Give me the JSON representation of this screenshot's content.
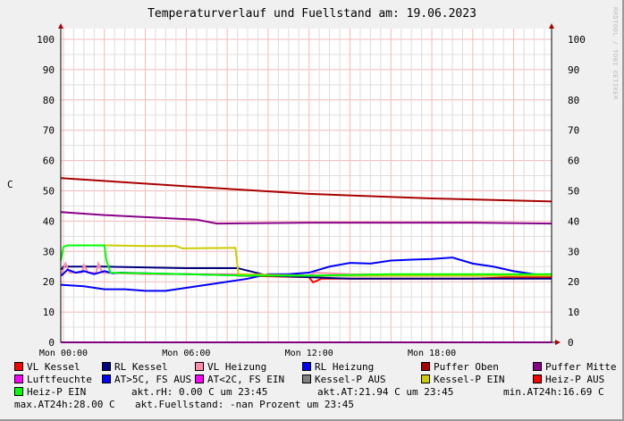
{
  "chart_data": {
    "type": "line",
    "title": "Temperaturverlauf und Fuellstand am: 19.06.2023",
    "ylabel": "C",
    "watermark": "RRDTOOL / TOBI OETIKER",
    "ylim": [
      0,
      100
    ],
    "yticks": [
      0,
      10,
      20,
      30,
      40,
      50,
      60,
      70,
      80,
      90,
      100
    ],
    "xlim_hours": [
      -0.13,
      23.85
    ],
    "xticks": [
      {
        "h": 0,
        "label": "Mon 00:00"
      },
      {
        "h": 6,
        "label": "Mon 06:00"
      },
      {
        "h": 12,
        "label": "Mon 12:00"
      },
      {
        "h": 18,
        "label": "Mon 18:00"
      }
    ],
    "grid": true,
    "legend_position": "bottom",
    "series": [
      {
        "name": "VL Kessel",
        "color": "#ff0000",
        "points": [
          [
            8.5,
            22
          ],
          [
            12,
            21.5
          ],
          [
            12.2,
            19.8
          ],
          [
            12.6,
            21
          ],
          [
            16,
            21
          ],
          [
            20,
            21
          ],
          [
            22,
            21.5
          ],
          [
            23.85,
            21.5
          ]
        ]
      },
      {
        "name": "RL Kessel",
        "color": "#000080",
        "points": [
          [
            -0.1,
            24
          ],
          [
            0,
            25
          ],
          [
            2,
            25
          ],
          [
            6,
            24.5
          ],
          [
            8.5,
            24.5
          ],
          [
            10,
            22
          ],
          [
            12,
            21.5
          ],
          [
            14,
            21
          ],
          [
            20,
            21
          ],
          [
            23.85,
            21
          ]
        ]
      },
      {
        "name": "VL Heizung",
        "color": "#ff8ca8",
        "points": [
          [
            -0.1,
            22
          ],
          [
            0.1,
            26
          ],
          [
            0.3,
            23
          ],
          [
            0.9,
            23
          ],
          [
            1,
            25.5
          ],
          [
            1.2,
            23
          ],
          [
            1.6,
            23
          ],
          [
            1.7,
            26
          ],
          [
            1.9,
            23
          ],
          [
            4,
            22.5
          ],
          [
            8.5,
            22.5
          ],
          [
            12,
            22
          ],
          [
            12.3,
            23
          ],
          [
            14,
            22.5
          ],
          [
            23.85,
            22
          ]
        ]
      },
      {
        "name": "RL Heizung",
        "color": "#0000ff",
        "points": [
          [
            -0.1,
            22
          ],
          [
            0.2,
            24
          ],
          [
            0.6,
            23
          ],
          [
            1,
            23.5
          ],
          [
            1.5,
            22.5
          ],
          [
            2,
            23.5
          ],
          [
            2.4,
            22.8
          ],
          [
            2.8,
            23
          ],
          [
            4,
            22.8
          ],
          [
            8,
            22.2
          ],
          [
            9,
            22
          ],
          [
            12,
            22
          ],
          [
            23.85,
            22
          ]
        ]
      },
      {
        "name": "Puffer Oben",
        "color": "#aa0000",
        "points": [
          [
            -0.13,
            54.2
          ],
          [
            6,
            51.5
          ],
          [
            12,
            49
          ],
          [
            18,
            47.5
          ],
          [
            23.85,
            46.5
          ]
        ]
      },
      {
        "name": "Puffer Mitte",
        "color": "#880088",
        "points": [
          [
            -0.13,
            43
          ],
          [
            2,
            42
          ],
          [
            6.5,
            40.5
          ],
          [
            7.5,
            39.2
          ],
          [
            12,
            39.5
          ],
          [
            20,
            39.5
          ],
          [
            23.85,
            39.2
          ]
        ]
      },
      {
        "name": "Luftfeuchte",
        "color": "#ff00ff",
        "points": [
          [
            -0.13,
            0
          ],
          [
            23.85,
            0
          ]
        ]
      },
      {
        "name": "AT>5C, FS AUS",
        "color": "#0000ff",
        "points": [
          [
            -0.13,
            19
          ],
          [
            1,
            18.5
          ],
          [
            2,
            17.5
          ],
          [
            3,
            17.5
          ],
          [
            4,
            17
          ],
          [
            5,
            17
          ],
          [
            6,
            18
          ],
          [
            7,
            19
          ],
          [
            8,
            20
          ],
          [
            9,
            21
          ],
          [
            10,
            22.5
          ],
          [
            11,
            22.5
          ],
          [
            12,
            23
          ],
          [
            13,
            25
          ],
          [
            14,
            26.2
          ],
          [
            15,
            26
          ],
          [
            16,
            27
          ],
          [
            17,
            27.3
          ],
          [
            18,
            27.5
          ],
          [
            19,
            28
          ],
          [
            20,
            26
          ],
          [
            21,
            25
          ],
          [
            22,
            23.5
          ],
          [
            23,
            22.5
          ],
          [
            23.85,
            22
          ]
        ]
      },
      {
        "name": "AT<2C, FS EIN",
        "color": "#ff00ff",
        "points": []
      },
      {
        "name": "Kessel-P AUS",
        "color": "#808080",
        "points": []
      },
      {
        "name": "Kessel-P EIN",
        "color": "#cccc00",
        "points": [
          [
            2,
            32
          ],
          [
            4,
            31.8
          ],
          [
            5.5,
            31.8
          ],
          [
            5.8,
            31
          ],
          [
            8.4,
            31.2
          ],
          [
            8.55,
            22.5
          ],
          [
            12,
            22
          ],
          [
            23.85,
            22
          ]
        ]
      },
      {
        "name": "Heiz-P AUS",
        "color": "#ff0000",
        "points": []
      },
      {
        "name": "Heiz-P EIN",
        "color": "#00ff00",
        "points": [
          [
            -0.13,
            27
          ],
          [
            0,
            31.5
          ],
          [
            0.2,
            32
          ],
          [
            2,
            32
          ],
          [
            2.1,
            27
          ],
          [
            2.3,
            23
          ],
          [
            6,
            22.5
          ],
          [
            9,
            22
          ],
          [
            12,
            22
          ],
          [
            16,
            22.5
          ],
          [
            23.85,
            22.5
          ]
        ]
      }
    ],
    "footer": [
      "akt.rH: 0.00 C um 23:45",
      "akt.AT:21.94 C um 23:45",
      "min.AT24h:16.69 C",
      "max.AT24h:28.00 C",
      "akt.Fuellstand: -nan Prozent um 23:45"
    ]
  }
}
